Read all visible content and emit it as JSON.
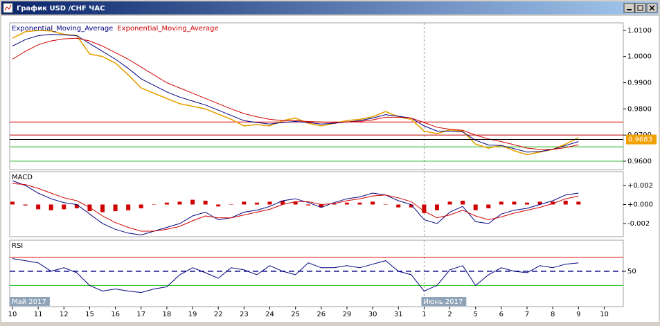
{
  "window": {
    "title": "График USD /CHF ЧАС"
  },
  "x_axis": {
    "categories": [
      "10",
      "11",
      "12",
      "15",
      "16",
      "17",
      "18",
      "19",
      "22",
      "23",
      "24",
      "25",
      "26",
      "29",
      "30",
      "31",
      "1",
      "2",
      "5",
      "6",
      "7",
      "8",
      "9",
      "10"
    ],
    "month_labels": [
      "Май 2017",
      null,
      null,
      null,
      null,
      null,
      null,
      null,
      null,
      null,
      null,
      null,
      null,
      null,
      null,
      null,
      "Июнь 2017",
      null,
      null,
      null,
      null,
      null,
      null,
      null
    ]
  },
  "chart_data": [
    {
      "type": "line",
      "ylim": [
        0.9568,
        1.0129
      ],
      "yticks": [
        {
          "value": 1.01,
          "label": "1.0100"
        },
        {
          "value": 1.0,
          "label": "1.0000"
        },
        {
          "value": 0.99,
          "label": "0.9900"
        },
        {
          "value": 0.98,
          "label": "0.9800"
        },
        {
          "value": 0.97,
          "label": "0.9700"
        },
        {
          "value": 0.96,
          "label": "0.9600"
        }
      ],
      "levels": [
        {
          "value": 0.975,
          "color": "#e00000"
        },
        {
          "value": 0.97,
          "color": "#c00000"
        },
        {
          "value": 0.9655,
          "color": "#20b020"
        },
        {
          "value": 0.96,
          "color": "#20b020"
        }
      ],
      "current": {
        "value": 0.9683,
        "label": "0.9683",
        "color": "#f0a000"
      },
      "series": [
        {
          "color": "#e8a000",
          "values": [
            1.007,
            1.0095,
            1.01,
            1.0098,
            1.0085,
            1.008,
            1.001,
            1.0,
            0.9975,
            0.993,
            0.988,
            0.986,
            0.984,
            0.982,
            0.981,
            0.98,
            0.978,
            0.976,
            0.9735,
            0.974,
            0.9735,
            0.9755,
            0.9765,
            0.9745,
            0.9735,
            0.9745,
            0.9755,
            0.976,
            0.977,
            0.979,
            0.977,
            0.976,
            0.9715,
            0.9705,
            0.972,
            0.9715,
            0.9665,
            0.965,
            0.966,
            0.964,
            0.9625,
            0.9635,
            0.9645,
            0.9665,
            0.969
          ]
        },
        {
          "name": "Exponential_Moving_Average",
          "color": "#000080",
          "values": [
            1.004,
            1.0065,
            1.008,
            1.0085,
            1.0083,
            1.008,
            1.005,
            1.002,
            0.999,
            0.9955,
            0.9915,
            0.989,
            0.9865,
            0.9845,
            0.983,
            0.9815,
            0.9795,
            0.9775,
            0.9755,
            0.9748,
            0.9742,
            0.9748,
            0.9752,
            0.9748,
            0.9742,
            0.9745,
            0.975,
            0.9755,
            0.9765,
            0.9778,
            0.9772,
            0.9765,
            0.9735,
            0.9715,
            0.9715,
            0.9712,
            0.968,
            0.9662,
            0.966,
            0.9648,
            0.9635,
            0.9637,
            0.9645,
            0.966,
            0.9675
          ]
        },
        {
          "name": "Exponential_Moving_Average",
          "color": "#d00000",
          "values": [
            0.999,
            1.002,
            1.0045,
            1.006,
            1.0068,
            1.007,
            1.006,
            1.004,
            1.0015,
            0.999,
            0.996,
            0.993,
            0.99,
            0.988,
            0.986,
            0.984,
            0.982,
            0.98,
            0.9782,
            0.977,
            0.976,
            0.9755,
            0.9755,
            0.9752,
            0.975,
            0.9748,
            0.975,
            0.9752,
            0.9758,
            0.9768,
            0.9768,
            0.9765,
            0.9748,
            0.973,
            0.9722,
            0.9718,
            0.97,
            0.9685,
            0.9675,
            0.9663,
            0.965,
            0.9645,
            0.9645,
            0.9652,
            0.9663
          ]
        }
      ]
    },
    {
      "type": "macd",
      "title": "MACD",
      "ylim": [
        -0.00338,
        0.00345
      ],
      "yticks": [
        {
          "value": 0.002,
          "label": "+0.002"
        },
        {
          "value": 0,
          "label": "+0.000"
        },
        {
          "value": -0.002,
          "label": "-0.002"
        }
      ],
      "histogram": {
        "color": "#d00000",
        "values": [
          0.0003,
          -0.0001,
          -0.0005,
          -0.0006,
          -0.0005,
          -0.0004,
          -0.0007,
          -0.0008,
          -0.0007,
          -0.0006,
          -0.0004,
          0.0,
          0.0002,
          0.0003,
          0.0005,
          0.0004,
          -0.0002,
          0.0,
          0.0003,
          0.0002,
          0.0003,
          0.0004,
          0.0003,
          -0.0001,
          -0.0003,
          0.0001,
          0.0002,
          0.0002,
          0.0003,
          0.0,
          -0.0003,
          -0.0003,
          -0.0009,
          -0.0006,
          0.0003,
          0.0004,
          -0.0006,
          -0.0004,
          0.0003,
          0.0003,
          0.0002,
          0.0003,
          0.0003,
          0.0004,
          0.0003
        ]
      },
      "series": [
        {
          "color": "#000080",
          "values": [
            0.0025,
            0.002,
            0.0012,
            0.0006,
            0.0002,
            0.0,
            -0.001,
            -0.002,
            -0.0026,
            -0.003,
            -0.0032,
            -0.0028,
            -0.0024,
            -0.002,
            -0.0012,
            -0.0008,
            -0.0016,
            -0.0014,
            -0.0008,
            -0.0006,
            -0.0002,
            0.0004,
            0.0006,
            0.0002,
            -0.0003,
            0.0002,
            0.0006,
            0.0008,
            0.0012,
            0.001,
            0.0004,
            0.0,
            -0.0016,
            -0.002,
            -0.0008,
            -0.0002,
            -0.0018,
            -0.002,
            -0.001,
            -0.0006,
            -0.0004,
            0.0,
            0.0004,
            0.001,
            0.0012
          ]
        },
        {
          "color": "#d00000",
          "values": [
            0.0022,
            0.0021,
            0.0017,
            0.0012,
            0.0007,
            0.0004,
            -0.0003,
            -0.0012,
            -0.0019,
            -0.0024,
            -0.0028,
            -0.0028,
            -0.0026,
            -0.0023,
            -0.0017,
            -0.0012,
            -0.0014,
            -0.0014,
            -0.0011,
            -0.0008,
            -0.0005,
            0.0,
            0.0003,
            0.0003,
            0.0,
            0.0001,
            0.0004,
            0.0006,
            0.0009,
            0.001,
            0.0007,
            0.0003,
            -0.0007,
            -0.0014,
            -0.0011,
            -0.0006,
            -0.0012,
            -0.0016,
            -0.0013,
            -0.0009,
            -0.0006,
            -0.0003,
            0.0001,
            0.0006,
            0.0009
          ]
        }
      ]
    },
    {
      "type": "line",
      "title": "RSI",
      "ylim": [
        0,
        94
      ],
      "yticks": [
        50
      ],
      "levels": [
        {
          "value": 70,
          "color": "#e00000"
        },
        {
          "value": 50,
          "color": "#000080",
          "dashed": true
        },
        {
          "value": 30,
          "color": "#20c020"
        }
      ],
      "series": [
        {
          "color": "#000080",
          "values": [
            68,
            65,
            62,
            50,
            55,
            48,
            30,
            22,
            25,
            22,
            20,
            25,
            28,
            45,
            55,
            48,
            40,
            55,
            52,
            45,
            58,
            50,
            45,
            62,
            55,
            55,
            58,
            55,
            60,
            65,
            50,
            45,
            22,
            30,
            52,
            58,
            30,
            45,
            55,
            50,
            48,
            58,
            55,
            60,
            62
          ]
        }
      ]
    }
  ]
}
